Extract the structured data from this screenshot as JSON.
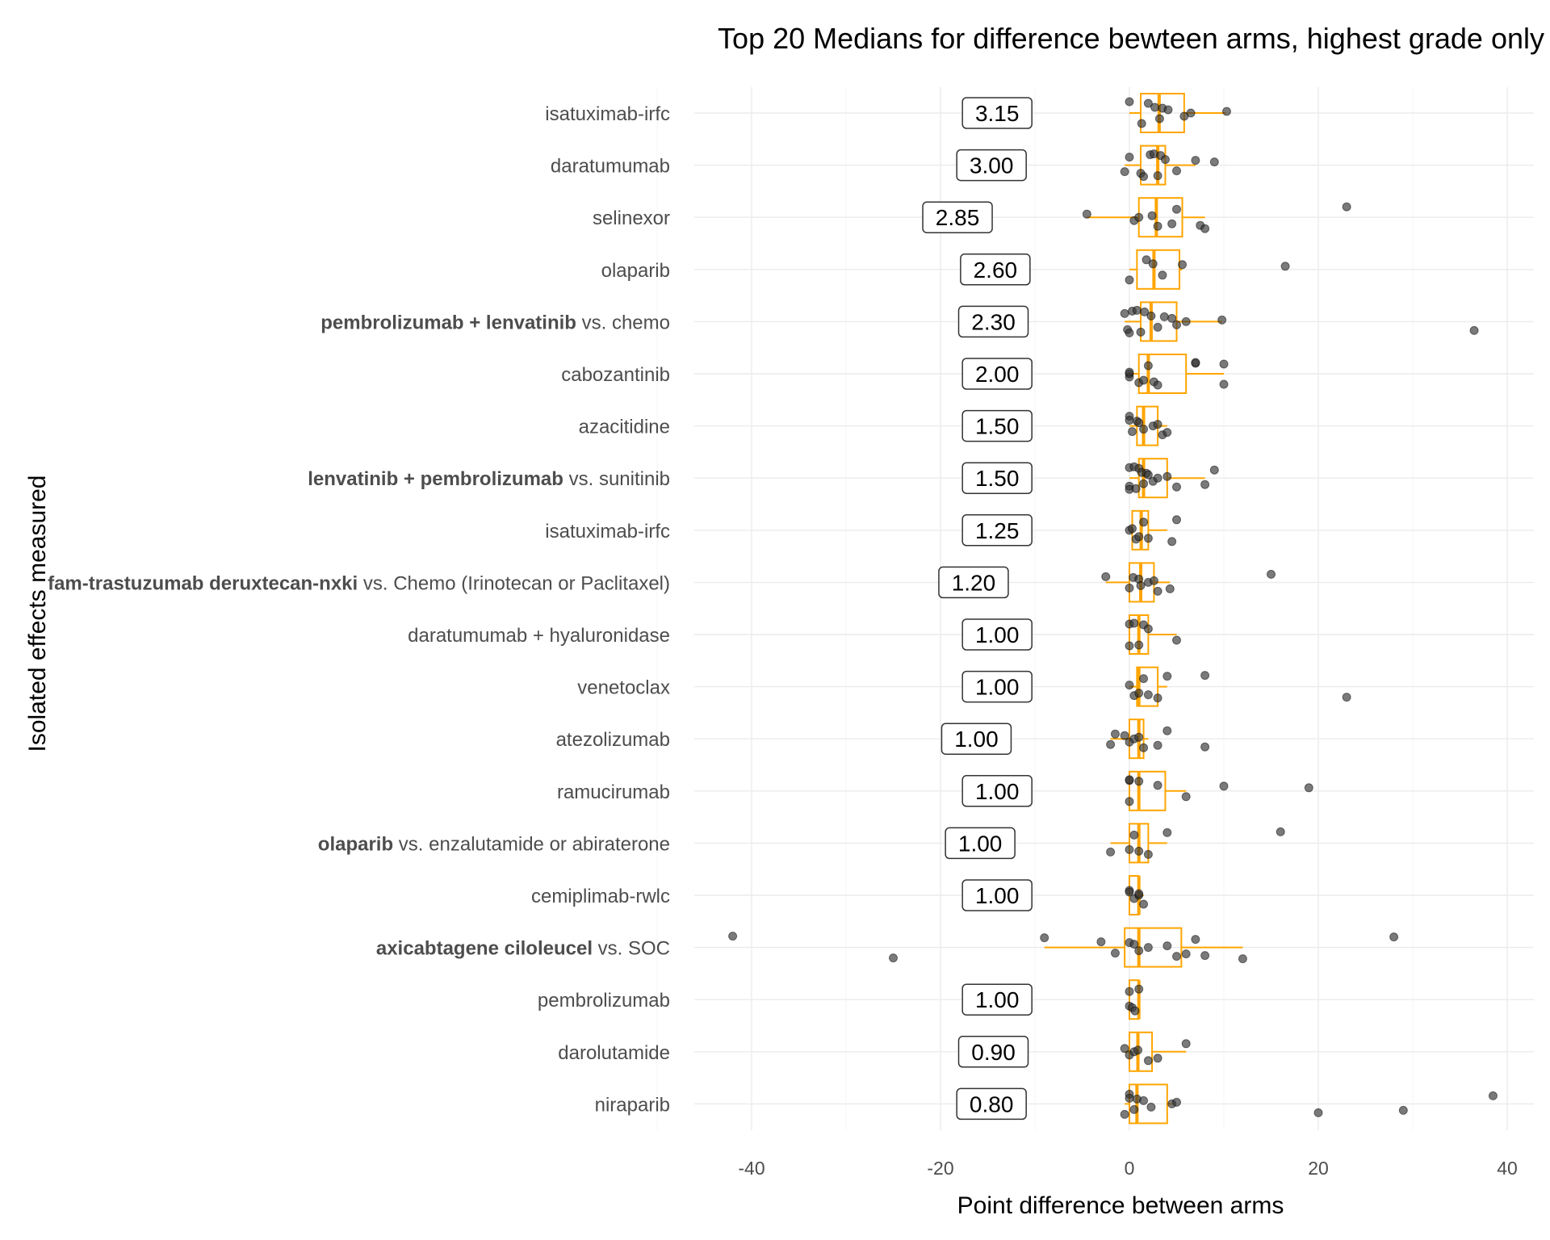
{
  "chart_data": {
    "type": "boxplot",
    "title": "Top 20 Medians for difference bewteen arms, highest grade only",
    "xlabel": "Point difference between arms",
    "ylabel": "Isolated effects measured",
    "xlim": [
      -50,
      43
    ],
    "x_ticks": [
      -40,
      -20,
      0,
      20,
      40
    ],
    "x_tick_labels": [
      "-40",
      "-20",
      "0",
      "20",
      "40"
    ],
    "grid": true,
    "colors": {
      "box": "#FFA500",
      "points": "#333333",
      "label_border": "#333333"
    },
    "categories": [
      {
        "bold": "",
        "rest": "isatuximab-irfc",
        "median_label": "3.15",
        "label_x": -14,
        "median": 3.15,
        "q1": 1.2,
        "q3": 5.8,
        "whisker_low": 0.0,
        "whisker_high": 10.2,
        "points": [
          0,
          1.3,
          2.0,
          2.7,
          3.2,
          3.5,
          4.1,
          5.8,
          6.5,
          10.3
        ]
      },
      {
        "bold": "",
        "rest": "daratumumab",
        "median_label": "3.00",
        "label_x": -14.6,
        "median": 3.0,
        "q1": 1.2,
        "q3": 3.8,
        "whisker_low": -0.5,
        "whisker_high": 7.0,
        "points": [
          -0.5,
          0,
          1.2,
          1.5,
          2.2,
          2.6,
          3.0,
          3.3,
          3.8,
          5.0,
          7.0,
          9.0
        ]
      },
      {
        "bold": "",
        "rest": "selinexor",
        "median_label": "2.85",
        "label_x": -18.2,
        "median": 2.85,
        "q1": 1.0,
        "q3": 5.6,
        "whisker_low": -4.5,
        "whisker_high": 8.0,
        "points": [
          -4.5,
          0.5,
          1.0,
          2.4,
          3.0,
          4.5,
          5.0,
          7.5,
          8.0,
          23.0
        ]
      },
      {
        "bold": "",
        "rest": "olaparib",
        "median_label": "2.60",
        "label_x": -14.2,
        "median": 2.6,
        "q1": 0.8,
        "q3": 5.3,
        "whisker_low": 0.0,
        "whisker_high": 5.6,
        "points": [
          0,
          1.8,
          2.5,
          3.5,
          5.6,
          16.5
        ]
      },
      {
        "bold": "pembrolizumab + lenvatinib",
        "rest": " vs. chemo",
        "median_label": "2.30",
        "label_x": -14.4,
        "median": 2.3,
        "q1": 1.2,
        "q3": 5.0,
        "whisker_low": -0.5,
        "whisker_high": 9.8,
        "points": [
          -0.5,
          -0.2,
          0,
          0.3,
          0.8,
          1.2,
          1.6,
          2.3,
          3.0,
          3.7,
          4.5,
          5.0,
          6.0,
          9.8,
          36.5
        ]
      },
      {
        "bold": "",
        "rest": "cabozantinib",
        "median_label": "2.00",
        "label_x": -14,
        "median": 2.0,
        "q1": 1.0,
        "q3": 6.0,
        "whisker_low": 0.0,
        "whisker_high": 10.0,
        "points": [
          0,
          0,
          0,
          1.0,
          1.5,
          2.0,
          2.6,
          3.0,
          7.0,
          7.0,
          10.0,
          10.0
        ]
      },
      {
        "bold": "",
        "rest": "azacitidine",
        "median_label": "1.50",
        "label_x": -14,
        "median": 1.5,
        "q1": 0.8,
        "q3": 3.0,
        "whisker_low": 0.0,
        "whisker_high": 4.0,
        "points": [
          0,
          0,
          0.3,
          0.8,
          1.0,
          1.5,
          2.5,
          3.0,
          3.5,
          4.0
        ]
      },
      {
        "bold": "lenvatinib + pembrolizumab",
        "rest": " vs. sunitinib",
        "median_label": "1.50",
        "label_x": -14,
        "median": 1.5,
        "q1": 1.0,
        "q3": 4.0,
        "whisker_low": 0.0,
        "whisker_high": 8.0,
        "points": [
          0,
          0,
          0,
          0.5,
          0.7,
          1.0,
          1.3,
          1.5,
          1.8,
          2.0,
          2.5,
          3.0,
          4.0,
          5.0,
          8.0,
          9.0
        ]
      },
      {
        "bold": "",
        "rest": "isatuximab-irfc",
        "median_label": "1.25",
        "label_x": -14,
        "median": 1.25,
        "q1": 0.3,
        "q3": 2.0,
        "whisker_low": 0.0,
        "whisker_high": 4.0,
        "points": [
          0,
          0.3,
          0.7,
          1.0,
          1.5,
          2.0,
          4.5,
          5.0
        ]
      },
      {
        "bold": "fam-trastuzumab deruxtecan-nxki",
        "rest": " vs. Chemo (Irinotecan or Paclitaxel)",
        "median_label": "1.20",
        "label_x": -16.5,
        "median": 1.2,
        "q1": 0.0,
        "q3": 2.6,
        "whisker_low": -2.5,
        "whisker_high": 4.3,
        "points": [
          -2.5,
          0,
          0.4,
          1.0,
          1.2,
          2.0,
          2.6,
          3.0,
          4.3,
          15.0
        ]
      },
      {
        "bold": "",
        "rest": "daratumumab + hyaluronidase",
        "median_label": "1.00",
        "label_x": -14,
        "median": 1.0,
        "q1": 0.0,
        "q3": 2.0,
        "whisker_low": 0.0,
        "whisker_high": 5.0,
        "points": [
          0,
          0,
          0.5,
          1.0,
          1.5,
          2.0,
          5.0
        ]
      },
      {
        "bold": "",
        "rest": "venetoclax",
        "median_label": "1.00",
        "label_x": -14,
        "median": 1.0,
        "q1": 0.8,
        "q3": 3.0,
        "whisker_low": 0.0,
        "whisker_high": 4.0,
        "points": [
          0,
          0.5,
          1.0,
          1.5,
          2.0,
          3.0,
          4.0,
          8.0,
          23.0
        ]
      },
      {
        "bold": "",
        "rest": "atezolizumab",
        "median_label": "1.00",
        "label_x": -16.2,
        "median": 1.0,
        "q1": 0.0,
        "q3": 1.5,
        "whisker_low": -2.0,
        "whisker_high": 2.0,
        "points": [
          -2.0,
          -1.5,
          -0.5,
          0,
          0.5,
          1.0,
          1.5,
          3.0,
          4.0,
          8.0
        ]
      },
      {
        "bold": "",
        "rest": "ramucirumab",
        "median_label": "1.00",
        "label_x": -14,
        "median": 1.0,
        "q1": 0.0,
        "q3": 3.8,
        "whisker_low": 0.0,
        "whisker_high": 6.0,
        "points": [
          0,
          0,
          0,
          1.0,
          3.0,
          6.0,
          10.0,
          19.0
        ]
      },
      {
        "bold": "olaparib",
        "rest": " vs. enzalutamide or abiraterone",
        "median_label": "1.00",
        "label_x": -15.8,
        "median": 1.0,
        "q1": 0.0,
        "q3": 2.0,
        "whisker_low": -2.0,
        "whisker_high": 4.0,
        "points": [
          -2.0,
          0,
          0.5,
          1.0,
          2.0,
          4.0,
          16.0
        ]
      },
      {
        "bold": "",
        "rest": "cemiplimab-rwlc",
        "median_label": "1.00",
        "label_x": -14,
        "median": 1.0,
        "q1": 0.0,
        "q3": 1.0,
        "whisker_low": 0.0,
        "whisker_high": 1.5,
        "points": [
          0,
          0,
          0.5,
          1.0,
          1.0,
          1.5
        ]
      },
      {
        "bold": "axicabtagene ciloleucel",
        "rest": " vs. SOC",
        "median_label": "",
        "label_x": -14,
        "median": 1.0,
        "q1": -0.5,
        "q3": 5.5,
        "whisker_low": -9.0,
        "whisker_high": 12.0,
        "points": [
          -42.0,
          -25.0,
          -9.0,
          -3.0,
          -1.5,
          0,
          0.5,
          1.0,
          2.0,
          4.0,
          5.0,
          6.0,
          7.0,
          8.0,
          12.0,
          28.0
        ]
      },
      {
        "bold": "",
        "rest": "pembrolizumab",
        "median_label": "1.00",
        "label_x": -14,
        "median": 1.0,
        "q1": 0.0,
        "q3": 1.0,
        "whisker_low": 0.0,
        "whisker_high": 1.0,
        "points": [
          0,
          0,
          0.3,
          0.6,
          1.0
        ]
      },
      {
        "bold": "",
        "rest": "darolutamide",
        "median_label": "0.90",
        "label_x": -14.4,
        "median": 0.9,
        "q1": 0.0,
        "q3": 2.4,
        "whisker_low": -0.5,
        "whisker_high": 6.0,
        "points": [
          -0.5,
          0,
          0.5,
          0.9,
          2.0,
          3.0,
          6.0
        ]
      },
      {
        "bold": "",
        "rest": "niraparib",
        "median_label": "0.80",
        "label_x": -14.6,
        "median": 0.8,
        "q1": 0.0,
        "q3": 4.0,
        "whisker_low": -0.5,
        "whisker_high": 4.5,
        "points": [
          -0.5,
          0,
          0,
          0.5,
          0.8,
          1.5,
          2.3,
          4.5,
          5.0,
          20.0,
          29.0,
          38.5
        ]
      }
    ]
  }
}
